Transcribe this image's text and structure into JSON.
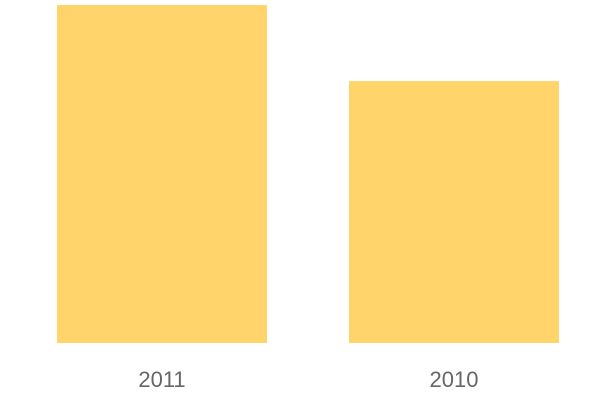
{
  "chart_data": {
    "type": "bar",
    "categories": [
      "2011",
      "2010"
    ],
    "values": [
      1.0,
      0.775
    ],
    "ylim": [
      0,
      1.0
    ],
    "title": "",
    "xlabel": "",
    "ylabel": "",
    "grid": false,
    "bar_color": "#FFD56B",
    "tick_label_color": "#666666"
  }
}
